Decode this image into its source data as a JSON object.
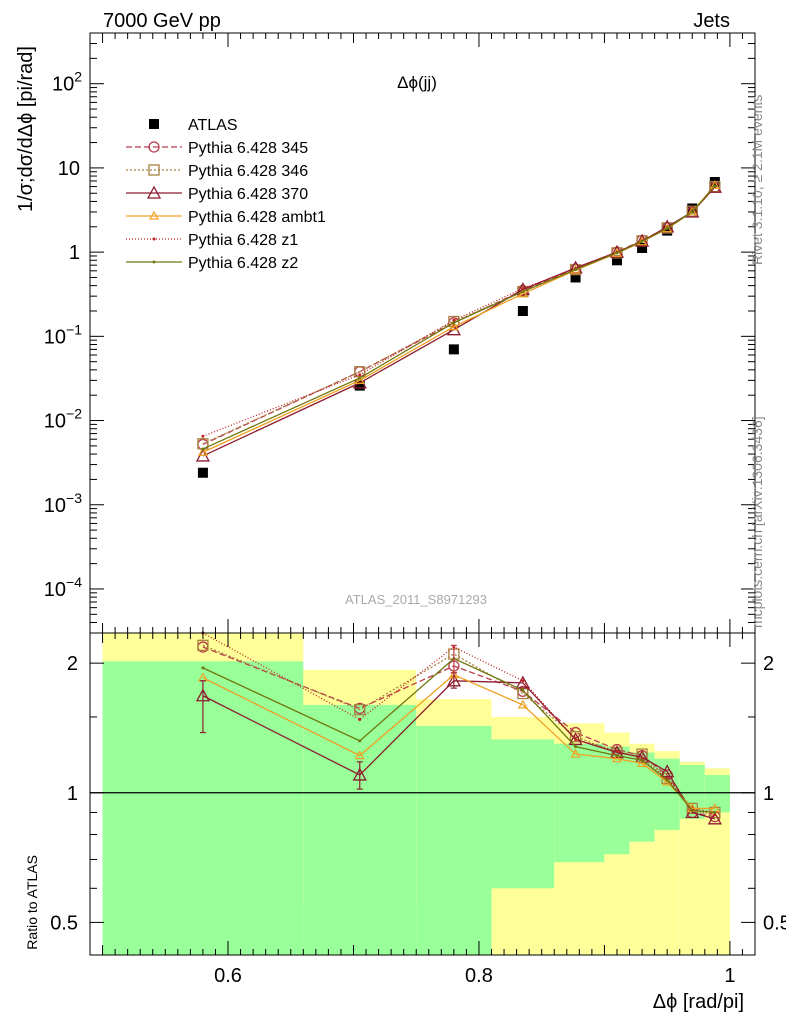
{
  "header": {
    "energy_label": "7000 GeV pp",
    "process_label": "Jets",
    "rivet_label": "Rivet 3.1.10, ≥ 2.1M events",
    "site_label": "mcplots.cern.ch [arXiv:1306.3436]",
    "analysis_id": "ATLAS_2011_S8971293"
  },
  "colors": {
    "data": "#000000",
    "p345": "#b83c4c",
    "p346": "#a88040",
    "p370": "#8c1c30",
    "ambt1": "#f0a020",
    "z1": "#c02020",
    "z2": "#707810",
    "band_inner": "#99ff99",
    "band_outer": "#ffff99"
  },
  "chart_data": [
    {
      "type": "line",
      "title": "Δϕ(jj)",
      "ylabel": "1/σ;dσ/dΔϕ [pi/rad]",
      "yscale": "log",
      "xlim": [
        0.49,
        1.02
      ],
      "ylim": [
        3e-05,
        400
      ],
      "y_ticks": [
        {
          "value": 0.0001,
          "base": "10",
          "exp": "−4"
        },
        {
          "value": 0.001,
          "base": "10",
          "exp": "−3"
        },
        {
          "value": 0.01,
          "base": "10",
          "exp": "−2"
        },
        {
          "value": 0.1,
          "base": "10",
          "exp": "−1"
        },
        {
          "value": 1,
          "base": "1",
          "exp": ""
        },
        {
          "value": 10,
          "base": "10",
          "exp": ""
        },
        {
          "value": 100,
          "base": "10",
          "exp": "2"
        }
      ],
      "legend_position": "top-left",
      "x": [
        0.58,
        0.705,
        0.78,
        0.835,
        0.877,
        0.91,
        0.93,
        0.95,
        0.97,
        0.988
      ],
      "series": [
        {
          "name": "ATLAS",
          "key": "data",
          "marker": "square",
          "values": [
            0.0024,
            0.026,
            0.07,
            0.2,
            0.5,
            0.8,
            1.12,
            1.8,
            3.3,
            6.8
          ]
        },
        {
          "name": "Pythia 6.428 345",
          "key": "p345",
          "marker": "circle",
          "dash": "6,3",
          "values": [
            0.0052,
            0.038,
            0.145,
            0.35,
            0.63,
            1.0,
            1.38,
            1.95,
            3.0,
            5.9
          ]
        },
        {
          "name": "Pythia 6.428 346",
          "key": "p346",
          "marker": "square-open",
          "dash": "2,2",
          "values": [
            0.0053,
            0.038,
            0.15,
            0.34,
            0.62,
            0.98,
            1.36,
            1.94,
            3.05,
            6.0
          ]
        },
        {
          "name": "Pythia 6.428 370",
          "key": "p370",
          "marker": "triangle",
          "dash": "",
          "values": [
            0.0038,
            0.028,
            0.12,
            0.36,
            0.65,
            1.0,
            1.35,
            2.0,
            3.0,
            5.9
          ]
        },
        {
          "name": "Pythia 6.428 ambt1",
          "key": "ambt1",
          "marker": "triangle-small",
          "dash": "",
          "values": [
            0.0042,
            0.03,
            0.13,
            0.32,
            0.61,
            0.97,
            1.33,
            1.9,
            3.02,
            6.2
          ]
        },
        {
          "name": "Pythia 6.428 z1",
          "key": "z1",
          "marker": "dot",
          "dash": "1,2",
          "values": [
            0.0065,
            0.035,
            0.155,
            0.37,
            0.64,
            1.0,
            1.36,
            1.93,
            3.0,
            6.0
          ]
        },
        {
          "name": "Pythia 6.428 z2",
          "key": "z2",
          "marker": "dot",
          "dash": "",
          "values": [
            0.0046,
            0.032,
            0.145,
            0.34,
            0.62,
            0.98,
            1.34,
            1.92,
            3.0,
            6.1
          ]
        }
      ]
    },
    {
      "type": "line",
      "ylabel": "Ratio to ATLAS",
      "xlabel": "Δϕ [rad/pi]",
      "yscale": "log",
      "xlim": [
        0.49,
        1.02
      ],
      "ylim": [
        0.42,
        2.35
      ],
      "x_ticks": [
        {
          "value": 0.6,
          "label": "0.6"
        },
        {
          "value": 0.8,
          "label": "0.8"
        },
        {
          "value": 1.0,
          "label": "1"
        }
      ],
      "y_ticks": [
        {
          "value": 0.5,
          "label": "0.5"
        },
        {
          "value": 1,
          "label": "1"
        },
        {
          "value": 2,
          "label": "2"
        }
      ],
      "bands": [
        {
          "x0": 0.5,
          "x1": 0.66,
          "inner": [
            0.42,
            2.02
          ],
          "outer": [
            0.42,
            2.35
          ]
        },
        {
          "x0": 0.66,
          "x1": 0.75,
          "inner": [
            0.42,
            1.6
          ],
          "outer": [
            0.55,
            1.93
          ]
        },
        {
          "x0": 0.75,
          "x1": 0.81,
          "inner": [
            0.42,
            1.43
          ],
          "outer": [
            0.55,
            1.65
          ]
        },
        {
          "x0": 0.81,
          "x1": 0.86,
          "inner": [
            0.6,
            1.33
          ],
          "outer": [
            0.42,
            1.5
          ]
        },
        {
          "x0": 0.86,
          "x1": 0.9,
          "inner": [
            0.69,
            1.3
          ],
          "outer": [
            0.42,
            1.45
          ]
        },
        {
          "x0": 0.9,
          "x1": 0.92,
          "inner": [
            0.72,
            1.28
          ],
          "outer": [
            0.42,
            1.38
          ]
        },
        {
          "x0": 0.92,
          "x1": 0.94,
          "inner": [
            0.77,
            1.24
          ],
          "outer": [
            0.42,
            1.3
          ]
        },
        {
          "x0": 0.94,
          "x1": 0.96,
          "inner": [
            0.82,
            1.2
          ],
          "outer": [
            0.42,
            1.25
          ]
        },
        {
          "x0": 0.96,
          "x1": 0.98,
          "inner": [
            0.87,
            1.16
          ],
          "outer": [
            0.42,
            1.18
          ]
        },
        {
          "x0": 0.98,
          "x1": 1.0,
          "inner": [
            0.9,
            1.1
          ],
          "outer": [
            0.42,
            1.14
          ]
        }
      ],
      "x": [
        0.58,
        0.705,
        0.78,
        0.835,
        0.877,
        0.91,
        0.93,
        0.95,
        0.97,
        0.988
      ],
      "series": [
        {
          "name": "Pythia 6.428 345",
          "key": "p345",
          "marker": "circle",
          "dash": "6,3",
          "values": [
            2.18,
            1.57,
            1.97,
            1.72,
            1.38,
            1.26,
            1.22,
            1.1,
            0.9,
            0.88
          ]
        },
        {
          "name": "Pythia 6.428 346",
          "key": "p346",
          "marker": "square-open",
          "dash": "2,2",
          "values": [
            2.2,
            1.56,
            2.1,
            1.7,
            1.35,
            1.24,
            1.23,
            1.08,
            0.92,
            0.9
          ]
        },
        {
          "name": "Pythia 6.428 370",
          "key": "p370",
          "marker": "triangle",
          "dash": "",
          "values": [
            1.68,
            1.1,
            1.82,
            1.8,
            1.33,
            1.24,
            1.21,
            1.12,
            0.9,
            0.87
          ]
        },
        {
          "name": "Pythia 6.428 ambt1",
          "key": "ambt1",
          "marker": "triangle-small",
          "dash": "",
          "values": [
            1.85,
            1.22,
            1.88,
            1.6,
            1.23,
            1.2,
            1.17,
            1.06,
            0.92,
            0.92
          ]
        },
        {
          "name": "Pythia 6.428 z1",
          "key": "z1",
          "marker": "dot",
          "dash": "1,2",
          "values": [
            2.35,
            1.48,
            2.18,
            1.82,
            1.33,
            1.25,
            1.2,
            1.08,
            0.91,
            0.89
          ]
        },
        {
          "name": "Pythia 6.428 z2",
          "key": "z2",
          "marker": "dot",
          "dash": "",
          "values": [
            1.95,
            1.32,
            2.05,
            1.73,
            1.28,
            1.22,
            1.19,
            1.07,
            0.91,
            0.9
          ]
        }
      ],
      "error_bars": [
        {
          "key": "p370",
          "x": 0.58,
          "low": 1.38,
          "high": 1.82
        },
        {
          "key": "p370",
          "x": 0.705,
          "low": 1.02,
          "high": 1.18
        },
        {
          "key": "p370",
          "x": 0.78,
          "low": 1.75,
          "high": 1.9
        },
        {
          "key": "p345",
          "x": 0.78,
          "low": 1.9,
          "high": 2.2
        }
      ]
    }
  ]
}
